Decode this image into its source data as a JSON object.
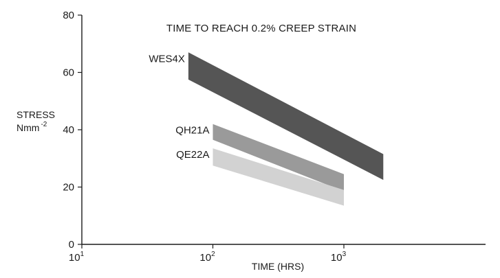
{
  "chart_data": {
    "type": "area",
    "title": "TIME TO REACH 0.2% CREEP STRAIN",
    "xlabel": "TIME (HRS)",
    "ylabel": "STRESS",
    "ylabel_unit_base": "Nmm",
    "ylabel_unit_exp": "-2",
    "x_scale": "log",
    "xlim": [
      10,
      5000
    ],
    "ylim": [
      0,
      80
    ],
    "x_ticks": [
      {
        "value": 10,
        "base": "10",
        "exp": "1"
      },
      {
        "value": 100,
        "base": "10",
        "exp": "2"
      },
      {
        "value": 1000,
        "base": "10",
        "exp": "3"
      }
    ],
    "y_ticks": [
      {
        "value": 0,
        "label": "0"
      },
      {
        "value": 20,
        "label": "20"
      },
      {
        "value": 40,
        "label": "40"
      },
      {
        "value": 60,
        "label": "60"
      },
      {
        "value": 80,
        "label": "80"
      }
    ],
    "grid": false,
    "series": [
      {
        "name": "WES4X",
        "color": "#555555",
        "x": [
          65,
          2000
        ],
        "upper": [
          67,
          31.5
        ],
        "lower": [
          57.5,
          22.5
        ]
      },
      {
        "name": "QH21A",
        "color": "#9a9a9a",
        "x": [
          100,
          1000
        ],
        "upper": [
          42,
          24.5
        ],
        "lower": [
          36.5,
          18.5
        ]
      },
      {
        "name": "QE22A",
        "color": "#d2d2d2",
        "x": [
          100,
          1000
        ],
        "upper": [
          33.5,
          19
        ],
        "lower": [
          27.5,
          13.5
        ]
      }
    ]
  }
}
